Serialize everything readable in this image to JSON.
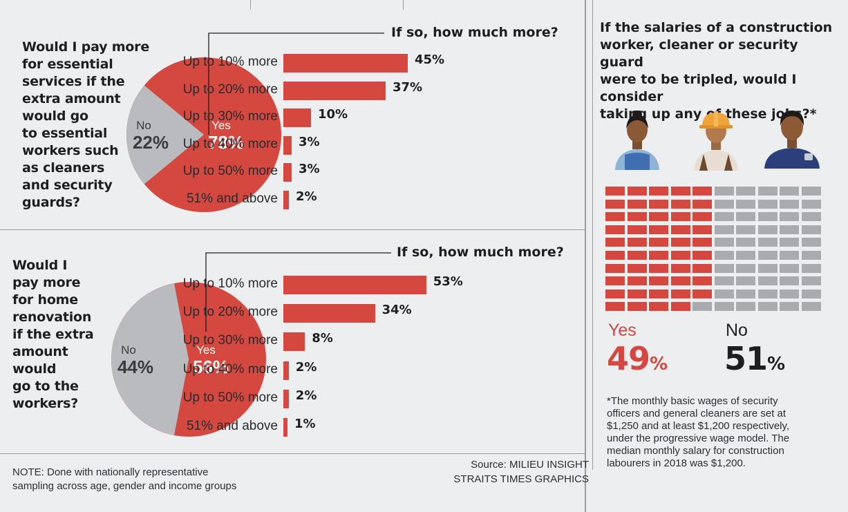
{
  "colors": {
    "red": "#d4483f",
    "grey": "#b9bbbe",
    "grey_dark": "#a9abae",
    "bg": "#eceef0",
    "text": "#1d1e20"
  },
  "chart_data": [
    {
      "type": "pie",
      "title": "Would I pay more for essential services if the extra amount would go to essential workers such as cleaners and security guards?",
      "slices": [
        {
          "name": "Yes",
          "value": 78,
          "label": "78%",
          "color": "#d4483f"
        },
        {
          "name": "No",
          "value": 22,
          "label": "22%",
          "color": "#b9bbbe"
        }
      ]
    },
    {
      "type": "bar",
      "title": "If so, how much more?",
      "categories": [
        "Up to 10% more",
        "Up to 20% more",
        "Up to 30% more",
        "Up to 40% more",
        "Up to 50% more",
        "51% and above"
      ],
      "values": [
        45,
        37,
        10,
        3,
        3,
        2
      ],
      "value_labels": [
        "45%",
        "37%",
        "10%",
        "3%",
        "3%",
        "2%"
      ],
      "xlim": [
        0,
        60
      ]
    },
    {
      "type": "pie",
      "title": "Would I pay more for home renovation if the extra amount would go to the workers?",
      "slices": [
        {
          "name": "Yes",
          "value": 56,
          "label": "56%",
          "color": "#d4483f"
        },
        {
          "name": "No",
          "value": 44,
          "label": "44%",
          "color": "#b9bbbe"
        }
      ]
    },
    {
      "type": "bar",
      "title": "If so, how much more?",
      "categories": [
        "Up to 10% more",
        "Up to 20% more",
        "Up to 30% more",
        "Up to 40% more",
        "Up to 50% more",
        "51% and above"
      ],
      "values": [
        53,
        34,
        8,
        2,
        2,
        1
      ],
      "value_labels": [
        "53%",
        "34%",
        "8%",
        "2%",
        "2%",
        "1%"
      ],
      "xlim": [
        0,
        60
      ]
    },
    {
      "type": "waffle",
      "title": "If the salaries of a construction worker, cleaner or security guard were to be tripled, would I consider taking up any of these jobs?*",
      "series": [
        {
          "name": "Yes",
          "value": 49,
          "label": "49",
          "color": "#d4483f"
        },
        {
          "name": "No",
          "value": 51,
          "label": "51",
          "color": "#a9abae"
        }
      ],
      "percent_sign": "%",
      "icons": [
        "cleaner-icon",
        "construction-worker-icon",
        "security-guard-icon"
      ]
    }
  ],
  "q1": {
    "lines": [
      "Would I pay more",
      "for essential",
      "services if the",
      "extra amount",
      "would go",
      "to essential",
      "workers such",
      "as cleaners",
      "and security",
      "guards?"
    ]
  },
  "q2": {
    "lines": [
      "Would I",
      "pay more",
      "for home",
      "renovation",
      "if the extra",
      "amount",
      "would",
      "go to the",
      "workers?"
    ]
  },
  "right_question": {
    "lines": [
      "If the salaries of a construction",
      "worker, cleaner or security guard",
      "were to be tripled, would I consider",
      "taking up any of these jobs?*"
    ]
  },
  "footnote": {
    "lines": [
      "*The monthly basic wages of security",
      "officers and general cleaners are set at",
      "$1,250 and at least $1,200 respectively,",
      "under the progressive wage model. The",
      "median monthly salary for construction",
      "labourers in 2018 was $1,200."
    ]
  },
  "note": {
    "lines": [
      "NOTE: Done with nationally representative",
      "sampling across age, gender and income groups"
    ]
  },
  "source": {
    "lines": [
      "Source: MILIEU INSIGHT",
      "STRAITS TIMES GRAPHICS"
    ]
  }
}
